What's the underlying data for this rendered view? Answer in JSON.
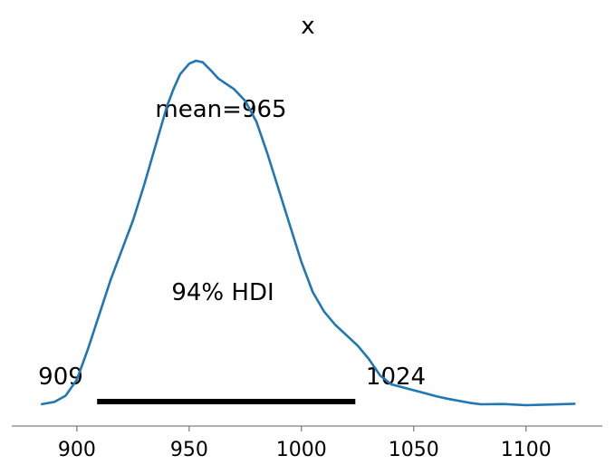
{
  "chart_data": {
    "type": "area",
    "title": "x",
    "xlabel": "",
    "ylabel": "",
    "xlim": [
      871,
      1134
    ],
    "ylim": [
      0,
      1.18
    ],
    "x_ticks": [
      900,
      950,
      1000,
      1050,
      1100
    ],
    "tick_labels": [
      "900",
      "950",
      "1000",
      "1050",
      "1100"
    ],
    "grid": false,
    "series": [
      {
        "color": "#1f77b4",
        "x": [
          884,
          890,
          895,
          900,
          905,
          910,
          915,
          920,
          925,
          930,
          935,
          940,
          943,
          946,
          950,
          953,
          956,
          960,
          963,
          966,
          970,
          975,
          980,
          985,
          990,
          995,
          1000,
          1005,
          1010,
          1015,
          1020,
          1025,
          1030,
          1035,
          1040,
          1045,
          1050,
          1055,
          1060,
          1065,
          1070,
          1075,
          1080,
          1090,
          1100,
          1110,
          1122
        ],
        "y": [
          0.003,
          0.011,
          0.032,
          0.086,
          0.19,
          0.305,
          0.42,
          0.52,
          0.62,
          0.74,
          0.87,
          1.0,
          1.06,
          1.11,
          1.145,
          1.155,
          1.15,
          1.12,
          1.095,
          1.08,
          1.06,
          1.02,
          0.95,
          0.84,
          0.72,
          0.6,
          0.48,
          0.38,
          0.315,
          0.27,
          0.235,
          0.2,
          0.155,
          0.1,
          0.07,
          0.06,
          0.05,
          0.04,
          0.03,
          0.022,
          0.015,
          0.008,
          0.003,
          0.004,
          0.0,
          0.002,
          0.005
        ]
      }
    ],
    "hdi": {
      "label": "94% HDI",
      "low": 909,
      "high": 1024,
      "low_label": "909",
      "high_label": "1024"
    },
    "mean": {
      "value": 965,
      "label": "mean=965"
    }
  }
}
